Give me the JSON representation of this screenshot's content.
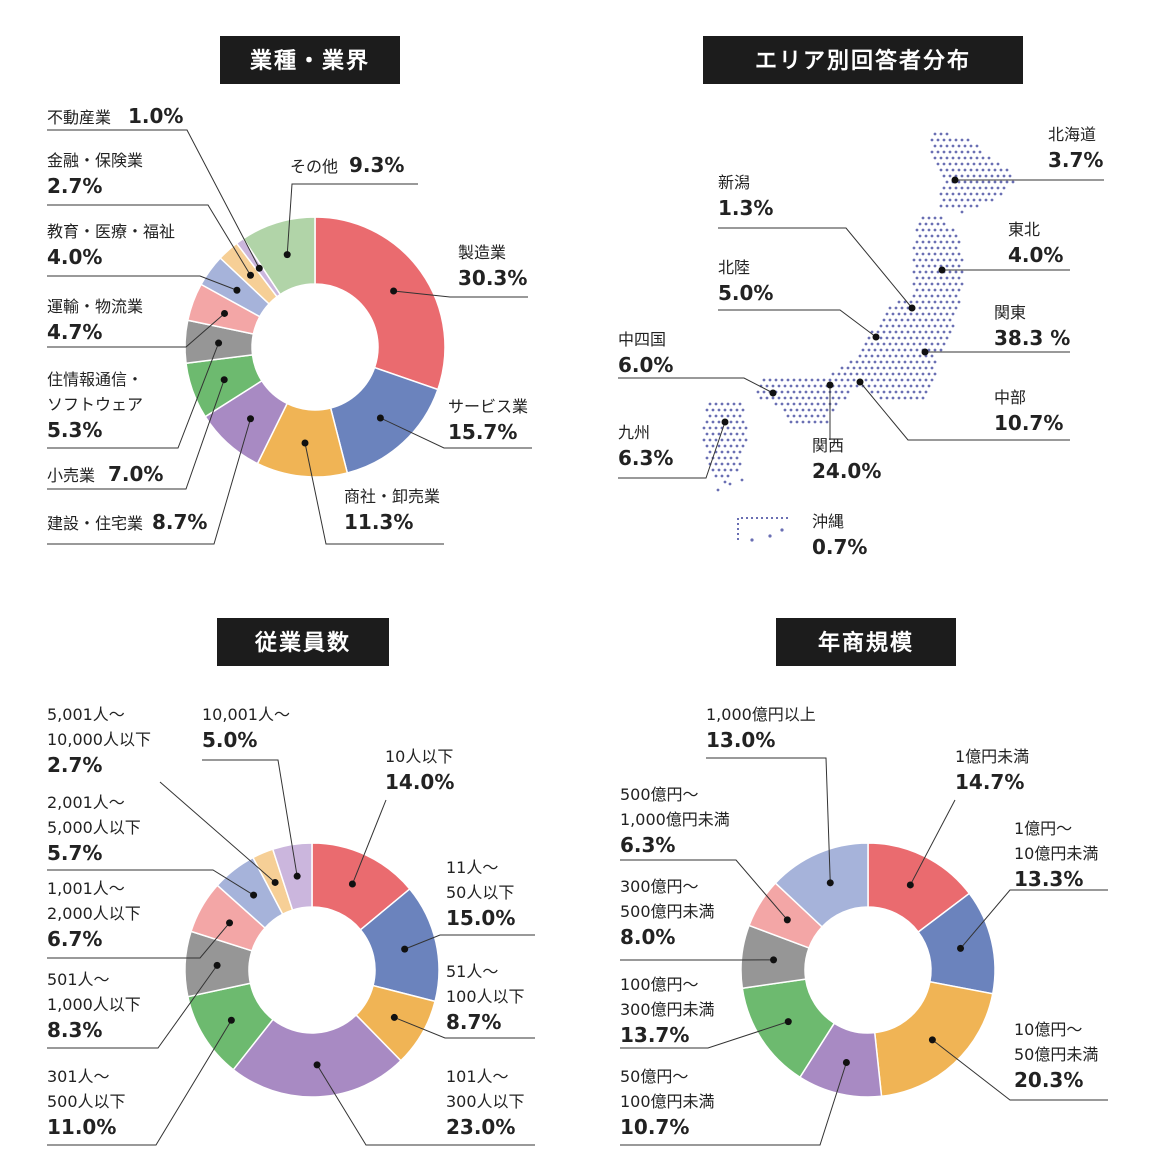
{
  "colors": {
    "red": "#ea6b6f",
    "blue": "#6b83bd",
    "orange": "#f0b455",
    "purple": "#a88ac3",
    "green": "#6dba6f",
    "gray": "#969696",
    "pink": "#f3a6a6",
    "lightblue": "#a6b3da",
    "peach": "#f6cf96",
    "lavender": "#cbb6dd",
    "palegreen": "#b1d4a8",
    "map": "#6a6fb3"
  },
  "chart_data": [
    {
      "type": "pie",
      "title": "業種・業界",
      "slices": [
        {
          "label": [
            "製造業"
          ],
          "value": 30.3,
          "pct": "30.3%",
          "color": "red"
        },
        {
          "label": [
            "サービス業"
          ],
          "value": 15.7,
          "pct": "15.7%",
          "color": "blue"
        },
        {
          "label": [
            "商社・卸売業"
          ],
          "value": 11.3,
          "pct": "11.3%",
          "color": "orange"
        },
        {
          "label": [
            "建設・住宅業"
          ],
          "value": 8.7,
          "pct": "8.7%",
          "color": "purple"
        },
        {
          "label": [
            "小売業"
          ],
          "value": 7.0,
          "pct": "7.0%",
          "color": "green"
        },
        {
          "label": [
            "住情報通信・",
            "ソフトウェア"
          ],
          "value": 5.3,
          "pct": "5.3%",
          "color": "gray"
        },
        {
          "label": [
            "運輸・物流業"
          ],
          "value": 4.7,
          "pct": "4.7%",
          "color": "pink"
        },
        {
          "label": [
            "教育・医療・福祉"
          ],
          "value": 4.0,
          "pct": "4.0%",
          "color": "lightblue"
        },
        {
          "label": [
            "金融・保険業"
          ],
          "value": 2.7,
          "pct": "2.7%",
          "color": "peach"
        },
        {
          "label": [
            "不動産業"
          ],
          "value": 1.0,
          "pct": "1.0%",
          "color": "lavender"
        },
        {
          "label": [
            "その他"
          ],
          "value": 9.3,
          "pct": "9.3%",
          "color": "palegreen"
        }
      ]
    },
    {
      "type": "map",
      "title": "エリア別回答者分布",
      "regions": [
        {
          "label": "北海道",
          "value": 3.7,
          "pct": "3.7%"
        },
        {
          "label": "東北",
          "value": 4.0,
          "pct": "4.0%"
        },
        {
          "label": "関東",
          "value": 38.3,
          "pct": "38.3 %"
        },
        {
          "label": "中部",
          "value": 10.7,
          "pct": "10.7%"
        },
        {
          "label": "関西",
          "value": 24.0,
          "pct": "24.0%"
        },
        {
          "label": "沖縄",
          "value": 0.7,
          "pct": "0.7%"
        },
        {
          "label": "九州",
          "value": 6.3,
          "pct": "6.3%"
        },
        {
          "label": "中四国",
          "value": 6.0,
          "pct": "6.0%"
        },
        {
          "label": "北陸",
          "value": 5.0,
          "pct": "5.0%"
        },
        {
          "label": "新潟",
          "value": 1.3,
          "pct": "1.3%"
        }
      ]
    },
    {
      "type": "pie",
      "title": "従業員数",
      "slices": [
        {
          "label": [
            "10人以下"
          ],
          "value": 14.0,
          "pct": "14.0%",
          "color": "red"
        },
        {
          "label": [
            "11人～",
            "50人以下"
          ],
          "value": 15.0,
          "pct": "15.0%",
          "color": "blue"
        },
        {
          "label": [
            "51人～",
            "100人以下"
          ],
          "value": 8.7,
          "pct": "8.7%",
          "color": "orange"
        },
        {
          "label": [
            "101人～",
            "300人以下"
          ],
          "value": 23.0,
          "pct": "23.0%",
          "color": "purple"
        },
        {
          "label": [
            "301人～",
            "500人以下"
          ],
          "value": 11.0,
          "pct": "11.0%",
          "color": "green"
        },
        {
          "label": [
            "501人～",
            "1,000人以下"
          ],
          "value": 8.3,
          "pct": "8.3%",
          "color": "gray"
        },
        {
          "label": [
            "1,001人～",
            "2,000人以下"
          ],
          "value": 6.7,
          "pct": "6.7%",
          "color": "pink"
        },
        {
          "label": [
            "2,001人～",
            "5,000人以下"
          ],
          "value": 5.7,
          "pct": "5.7%",
          "color": "lightblue"
        },
        {
          "label": [
            "5,001人～",
            "10,000人以下"
          ],
          "value": 2.7,
          "pct": "2.7%",
          "color": "peach"
        },
        {
          "label": [
            "10,001人～"
          ],
          "value": 5.0,
          "pct": "5.0%",
          "color": "lavender"
        }
      ]
    },
    {
      "type": "pie",
      "title": "年商規模",
      "slices": [
        {
          "label": [
            "1億円未満"
          ],
          "value": 14.7,
          "pct": "14.7%",
          "color": "red"
        },
        {
          "label": [
            "1億円～",
            "10億円未満"
          ],
          "value": 13.3,
          "pct": "13.3%",
          "color": "blue"
        },
        {
          "label": [
            "10億円～",
            "50億円未満"
          ],
          "value": 20.3,
          "pct": "20.3%",
          "color": "orange"
        },
        {
          "label": [
            "50億円～",
            "100億円未満"
          ],
          "value": 10.7,
          "pct": "10.7%",
          "color": "purple"
        },
        {
          "label": [
            "100億円～",
            "300億円未満"
          ],
          "value": 13.7,
          "pct": "13.7%",
          "color": "green"
        },
        {
          "label": [
            "300億円～",
            "500億円未満"
          ],
          "value": 8.0,
          "pct": "8.0%",
          "color": "gray"
        },
        {
          "label": [
            "500億円～",
            "1,000億円未満"
          ],
          "value": 6.3,
          "pct": "6.3%",
          "color": "pink"
        },
        {
          "label": [
            "1,000億円以上"
          ],
          "value": 13.0,
          "pct": "13.0%",
          "color": "lightblue"
        }
      ]
    }
  ]
}
